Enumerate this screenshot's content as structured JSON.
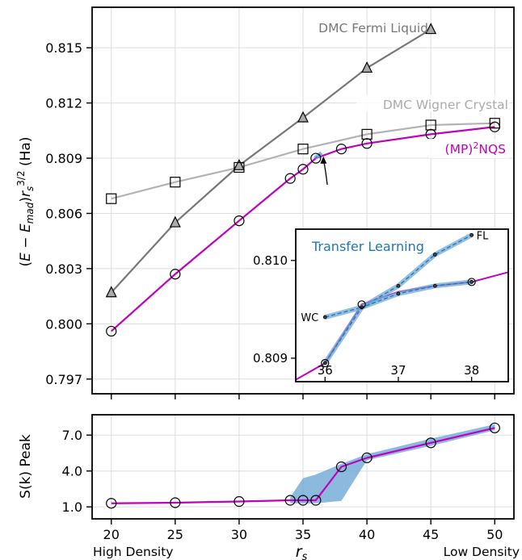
{
  "chart_data": [
    {
      "type": "line",
      "ylabel_parts": [
        "(",
        "E",
        " − ",
        "E",
        "mad",
        ")",
        "r",
        "s",
        "3/2",
        " (Ha)"
      ],
      "xlim": [
        18.5,
        51.5
      ],
      "ylim": [
        0.7962,
        0.8172
      ],
      "xticks": [
        20,
        25,
        30,
        35,
        40,
        45,
        50
      ],
      "yticks": [
        0.797,
        0.8,
        0.803,
        0.806,
        0.809,
        0.812,
        0.815
      ],
      "ytick_labels": [
        "0.797",
        "0.800",
        "0.803",
        "0.806",
        "0.809",
        "0.812",
        "0.815"
      ],
      "grid": true,
      "series": [
        {
          "name": "DMC Fermi Liquid",
          "color": "#777777",
          "marker": "triangle",
          "x": [
            20,
            25,
            30,
            35,
            40,
            45
          ],
          "y": [
            0.8017,
            0.8055,
            0.8086,
            0.8112,
            0.8139,
            0.816
          ]
        },
        {
          "name": "DMC Wigner Crystal",
          "color": "#b3b3b3",
          "marker": "square",
          "x": [
            20,
            25,
            30,
            35,
            40,
            45,
            50
          ],
          "y": [
            0.8068,
            0.8077,
            0.8085,
            0.8095,
            0.8103,
            0.8108,
            0.8109
          ]
        },
        {
          "name_parts": [
            "(MP)",
            "2",
            "NQS"
          ],
          "color": "#bf00bf",
          "marker": "circle",
          "x": [
            20,
            25,
            30,
            34,
            35,
            36,
            38,
            40,
            45,
            50
          ],
          "y": [
            0.7996,
            0.8027,
            0.8056,
            0.8079,
            0.8084,
            0.809,
            0.8095,
            0.8098,
            0.8103,
            0.8107
          ]
        }
      ],
      "annotation": {
        "arrow_from": [
          36.9,
          0.80755
        ],
        "arrow_to": [
          36.6,
          0.8091
        ]
      },
      "inset": {
        "title": "Transfer Learning",
        "xlim": [
          35.6,
          38.5
        ],
        "ylim": [
          0.80876,
          0.81032
        ],
        "xticks": [
          36,
          37,
          38
        ],
        "yticks": [
          0.809,
          0.81
        ],
        "ytick_labels": [
          "0.809",
          "0.810"
        ],
        "label_wc": "WC",
        "label_fl": "FL",
        "nqs_line": {
          "x": [
            35.6,
            36.0,
            36.5,
            37.0,
            37.5,
            38.0,
            38.5
          ],
          "y": [
            0.80878,
            0.80895,
            0.80955,
            0.80968,
            0.80974,
            0.80978,
            0.80988
          ]
        },
        "nqs_points": {
          "x": [
            36.0,
            36.5,
            38.0
          ],
          "y": [
            0.80895,
            0.80955,
            0.80978
          ]
        },
        "transfer_wc_to_fl": {
          "x": [
            36.0,
            36.5,
            37.0,
            37.5,
            38.0
          ],
          "y": [
            0.80942,
            0.80952,
            0.80974,
            0.81006,
            0.81026
          ]
        },
        "transfer_fl_to_wc": {
          "x": [
            36.0,
            36.5,
            37.0,
            37.5,
            38.0
          ],
          "y": [
            0.80895,
            0.80952,
            0.80966,
            0.80974,
            0.80978
          ]
        },
        "band_color": "#6fa8d6"
      }
    },
    {
      "type": "line",
      "ylabel": "S(k) Peak",
      "xlabel_parts": [
        "r",
        "s"
      ],
      "xtick_left_label": "High Density",
      "xtick_right_label": "Low Density",
      "xlim": [
        18.5,
        51.5
      ],
      "ylim": [
        0.0,
        8.7
      ],
      "xticks": [
        20,
        25,
        30,
        35,
        40,
        45,
        50
      ],
      "yticks": [
        1.0,
        4.0,
        7.0
      ],
      "ytick_labels": [
        "1.0",
        "4.0",
        "7.0"
      ],
      "grid": true,
      "series": [
        {
          "color": "#bf00bf",
          "marker": "circle",
          "x": [
            20,
            25,
            30,
            34,
            35,
            36,
            38,
            40,
            45,
            50
          ],
          "y": [
            1.3,
            1.35,
            1.45,
            1.55,
            1.55,
            1.55,
            4.35,
            5.1,
            6.35,
            7.6
          ]
        }
      ],
      "band": {
        "color": "#6fa8d6",
        "upper": {
          "x": [
            34.0,
            35.0,
            36.0,
            38.0,
            40.0,
            45.0,
            50.0
          ],
          "y": [
            1.8,
            3.4,
            3.7,
            4.6,
            5.4,
            6.7,
            7.9
          ]
        },
        "lower": {
          "x": [
            50.0,
            45.0,
            40.0,
            38.0,
            36.0,
            35.0,
            34.0
          ],
          "y": [
            7.4,
            6.1,
            4.9,
            1.5,
            1.3,
            1.3,
            1.3
          ]
        }
      }
    }
  ]
}
